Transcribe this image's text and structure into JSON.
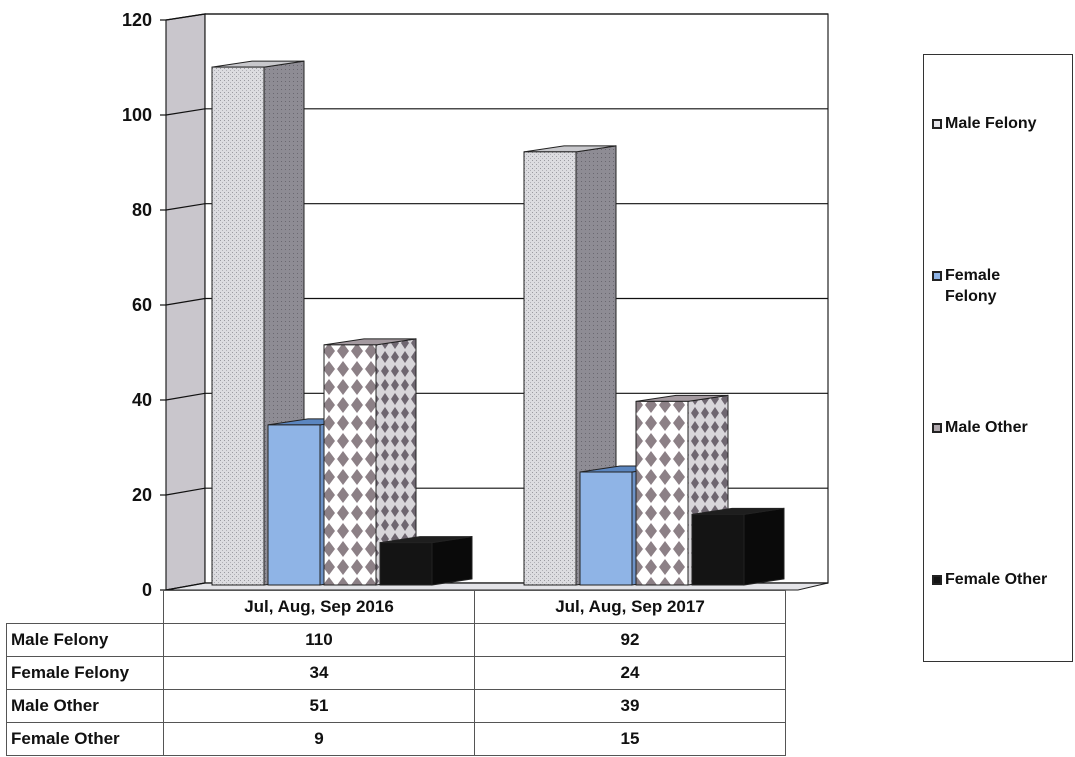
{
  "chart_data": {
    "type": "bar",
    "categories": [
      "Jul, Aug, Sep 2016",
      "Jul, Aug, Sep 2017"
    ],
    "series": [
      {
        "name": "Male Felony",
        "values": [
          110,
          92
        ],
        "color": "#d0d0d4",
        "pattern": "dotted-light"
      },
      {
        "name": "Female Felony",
        "values": [
          34,
          24
        ],
        "color": "#8fb4e6",
        "pattern": "solid"
      },
      {
        "name": "Male Other",
        "values": [
          51,
          39
        ],
        "color": "#8a7f85",
        "pattern": "diamond"
      },
      {
        "name": "Female Other",
        "values": [
          9,
          15
        ],
        "color": "#141414",
        "pattern": "solid"
      }
    ],
    "ylim": [
      0,
      120
    ],
    "yticks": [
      0,
      20,
      40,
      60,
      80,
      100,
      120
    ],
    "grid": true,
    "legend": "right",
    "data_table": true,
    "style": "3d-clustered"
  },
  "legend": {
    "items": [
      "Male Felony",
      "Female Felony",
      "Male Other",
      "Female Other"
    ]
  },
  "table": {
    "headers": [
      "Jul, Aug, Sep 2016",
      "Jul, Aug, Sep 2017"
    ],
    "rows": [
      {
        "label": "Male Felony",
        "values": [
          "110",
          "92"
        ]
      },
      {
        "label": "Female Felony",
        "values": [
          "34",
          "24"
        ]
      },
      {
        "label": "Male Other",
        "values": [
          "51",
          "39"
        ]
      },
      {
        "label": "Female Other",
        "values": [
          "9",
          "15"
        ]
      }
    ]
  }
}
